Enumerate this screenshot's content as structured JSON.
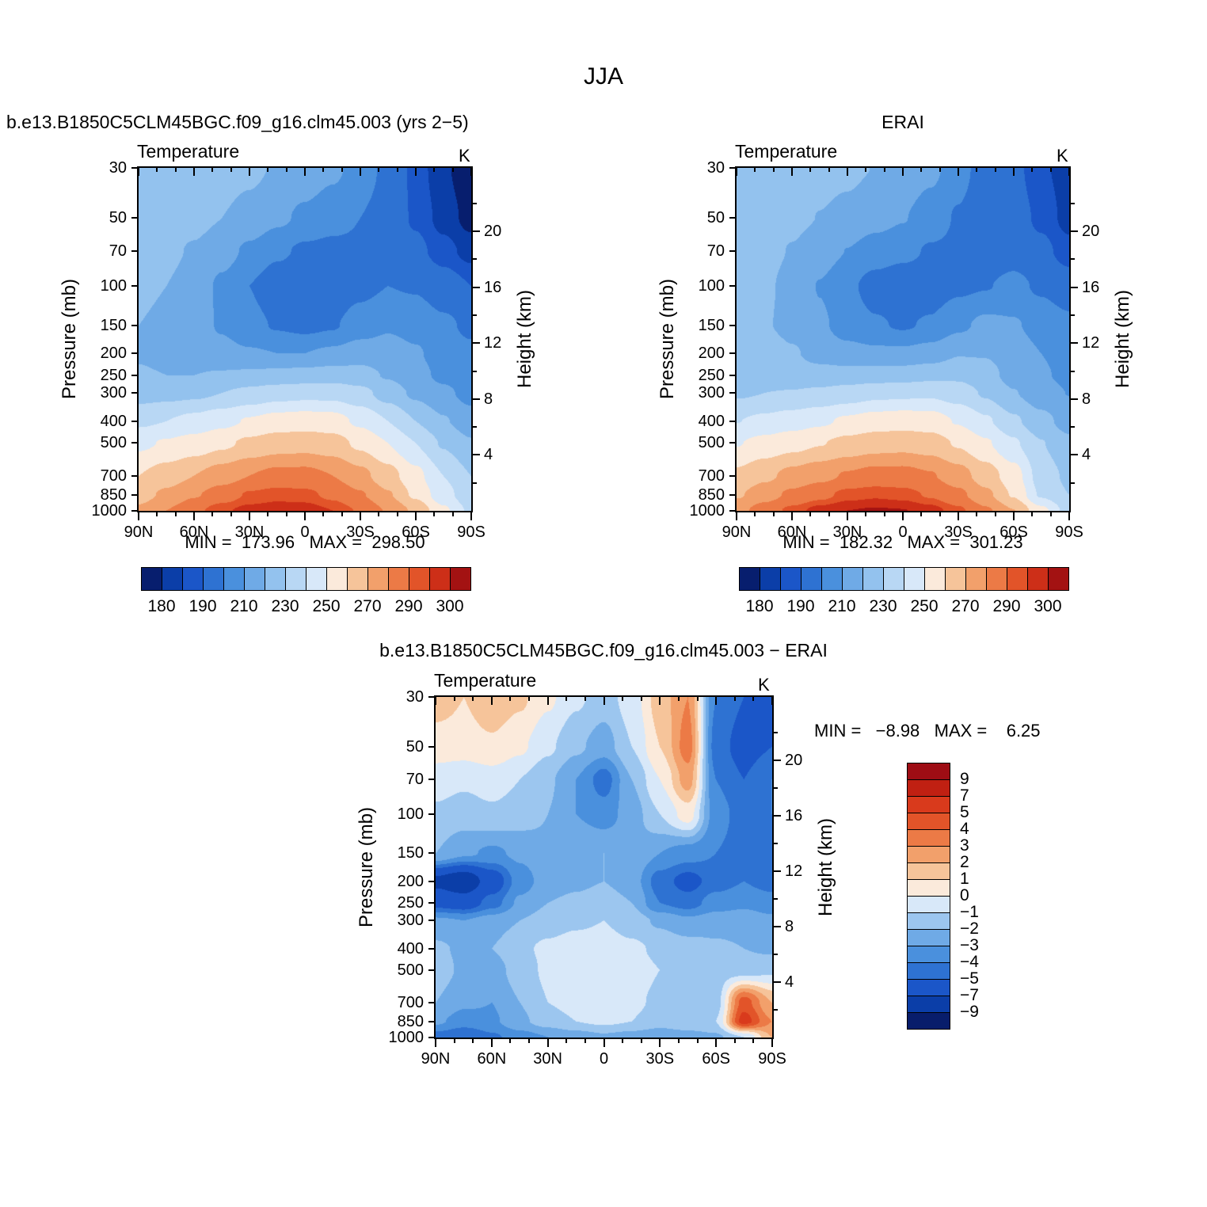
{
  "title": "JJA",
  "chart_data": {
    "type": "heatmap",
    "season": "JJA",
    "x": {
      "tick_labels": [
        "90N",
        "60N",
        "30N",
        "0",
        "30S",
        "60S",
        "90S"
      ],
      "lats": [
        90,
        75,
        60,
        45,
        30,
        15,
        0,
        -15,
        -30,
        -45,
        -60,
        -75,
        -90
      ]
    },
    "y": {
      "pressure_levels": [
        30,
        50,
        70,
        100,
        150,
        200,
        250,
        300,
        400,
        500,
        700,
        850,
        1000
      ],
      "height_ticks": [
        20,
        16,
        12,
        8,
        4
      ],
      "height_minor_ticks": [
        2,
        6,
        10,
        14,
        18,
        22
      ]
    },
    "temperature_scale": {
      "edges": [
        175,
        180,
        185,
        190,
        200,
        210,
        220,
        230,
        240,
        250,
        260,
        270,
        280,
        290,
        295,
        300,
        305
      ],
      "colors": [
        "#071e6e",
        "#0b3ea8",
        "#1b56c8",
        "#2e72d2",
        "#4a90dd",
        "#6faae6",
        "#93c2ee",
        "#b8d7f4",
        "#d8e8f9",
        "#fbeadb",
        "#f6c49a",
        "#f2a06b",
        "#ec7a46",
        "#e25429",
        "#cd2f18",
        "#a31212"
      ],
      "tick_labels": [
        "180",
        "",
        "190",
        "",
        "210",
        "",
        "230",
        "",
        "250",
        "",
        "270",
        "",
        "290",
        "",
        "300"
      ]
    },
    "difference_scale": {
      "edges": [
        -11,
        -9,
        -7,
        -5,
        -4,
        -3,
        -2,
        -1,
        0,
        1,
        2,
        3,
        4,
        5,
        7,
        9,
        11
      ],
      "colors": [
        "#081d6b",
        "#0b3ea8",
        "#1b56c8",
        "#2e72d2",
        "#4a90dd",
        "#6faae6",
        "#9cc6ef",
        "#d8e8f9",
        "#fbeadb",
        "#f6c49a",
        "#f2a06b",
        "#ec7a46",
        "#e25429",
        "#d93a1c",
        "#c02012",
        "#9e0d14"
      ],
      "tick_labels": [
        "−9",
        "−7",
        "−5",
        "−4",
        "−3",
        "−2",
        "−1",
        "0",
        "1",
        "2",
        "3",
        "4",
        "5",
        "7",
        "9"
      ]
    },
    "panels": [
      {
        "title": "b.e13.B1850C5CLM45BGC.f09_g16.clm45.003 (yrs 2−5)",
        "var_label": "Temperature",
        "units": "K",
        "ylabel_left": "Pressure (mb)",
        "ylabel_right": "Height (km)",
        "min_max": "MIN =  173.96   MAX =  298.50",
        "scale": "temperature_scale",
        "grid": [
          [
            228,
            227,
            226,
            224,
            222,
            219,
            216,
            212,
            206,
            197,
            188,
            181,
            176
          ],
          [
            226,
            225,
            223,
            220,
            217,
            212,
            208,
            204,
            200,
            195,
            189,
            183,
            178
          ],
          [
            224,
            222,
            219,
            214,
            208,
            202,
            198,
            197,
            198,
            196,
            192,
            187,
            183
          ],
          [
            222,
            220,
            216,
            208,
            200,
            193,
            190,
            192,
            197,
            200,
            199,
            194,
            190
          ],
          [
            220,
            218,
            214,
            209,
            203,
            199,
            197,
            199,
            205,
            209,
            207,
            202,
            198
          ],
          [
            219,
            217,
            215,
            213,
            211,
            210,
            210,
            212,
            215,
            214,
            211,
            206,
            202
          ],
          [
            221,
            220,
            220,
            221,
            222,
            223,
            224,
            225,
            224,
            219,
            213,
            208,
            204
          ],
          [
            226,
            227,
            228,
            230,
            233,
            236,
            237,
            237,
            233,
            226,
            218,
            212,
            207
          ],
          [
            238,
            240,
            243,
            247,
            251,
            254,
            255,
            254,
            248,
            240,
            230,
            221,
            214
          ],
          [
            248,
            251,
            254,
            258,
            262,
            265,
            266,
            264,
            258,
            250,
            240,
            229,
            221
          ],
          [
            260,
            265,
            270,
            275,
            280,
            283,
            283,
            280,
            273,
            264,
            253,
            240,
            230
          ],
          [
            266,
            272,
            279,
            285,
            291,
            293,
            292,
            288,
            281,
            271,
            258,
            244,
            233
          ],
          [
            272,
            280,
            288,
            294,
            297,
            298,
            298,
            295,
            289,
            279,
            268,
            252,
            238
          ]
        ]
      },
      {
        "title": "ERAI",
        "var_label": "Temperature",
        "units": "K",
        "ylabel_left": "Pressure (mb)",
        "ylabel_right": "Height (km)",
        "min_max": "MIN =  182.32   MAX =  301.23",
        "scale": "temperature_scale",
        "grid": [
          [
            226.5,
            226,
            224.2,
            222.8,
            221.8,
            219.8,
            217.5,
            212.5,
            204.5,
            194,
            192,
            186,
            182.5
          ],
          [
            225.5,
            224.5,
            222.2,
            219.8,
            217.8,
            213.8,
            210.5,
            205,
            199,
            191.5,
            193.5,
            188.5,
            183
          ],
          [
            224.5,
            222.8,
            219.5,
            215,
            209.8,
            205,
            202.5,
            199,
            198,
            193.5,
            196,
            192,
            187
          ],
          [
            223.2,
            221.5,
            217.2,
            209.5,
            202,
            196,
            193.5,
            194.5,
            198,
            199.5,
            202.5,
            198.5,
            194
          ],
          [
            222,
            220.8,
            217.2,
            211.8,
            205.2,
            201,
            199,
            201.2,
            208,
            212.5,
            211,
            206.5,
            202.5
          ],
          [
            226.5,
            225.5,
            221,
            216.5,
            213.5,
            212.2,
            212,
            214.5,
            219.5,
            219.5,
            215.5,
            210,
            206.5
          ],
          [
            226.5,
            226,
            224.5,
            223.8,
            224,
            224.8,
            225.5,
            227,
            228,
            223.5,
            216.5,
            211.2,
            207.5
          ],
          [
            228.8,
            230,
            230.5,
            232,
            234.5,
            237.2,
            238,
            238.5,
            235.2,
            228.8,
            220.5,
            214.5,
            209.8
          ],
          [
            239.8,
            242.2,
            245,
            248.2,
            251.8,
            254.5,
            255.5,
            254.8,
            249.2,
            241.5,
            231.8,
            223,
            216.2
          ],
          [
            249.5,
            253.2,
            256.5,
            259.5,
            262.8,
            265.5,
            266.4,
            264.6,
            259,
            251.2,
            241.5,
            230.5,
            222.2
          ],
          [
            262,
            267.8,
            273,
            277,
            281,
            283.6,
            283.5,
            280.8,
            274.2,
            265.2,
            254.5,
            235.5,
            228
          ],
          [
            268.8,
            275.5,
            282.2,
            287.2,
            292.5,
            294,
            292.8,
            289,
            282.5,
            272.2,
            259,
            238.5,
            230
          ],
          [
            276.5,
            285,
            292.2,
            297.5,
            300,
            300.6,
            300.2,
            297.5,
            291.8,
            281.5,
            270.2,
            253,
            236
          ]
        ]
      },
      {
        "title": "b.e13.B1850C5CLM45BGC.f09_g16.clm45.003 − ERAI",
        "var_label": "Temperature",
        "units": "K",
        "ylabel_left": "Pressure (mb)",
        "ylabel_right": "Height (km)",
        "min_max": "MIN =   −8.98   MAX =    6.25",
        "scale": "difference_scale",
        "grid": [
          [
            1.5,
            1,
            1.8,
            1.2,
            0.2,
            -0.8,
            -1.5,
            -0.5,
            1.5,
            3,
            -4,
            -5,
            -6.5
          ],
          [
            0.5,
            0.5,
            0.8,
            0.2,
            -0.8,
            -1.8,
            -2.5,
            -1,
            1,
            3.5,
            -4.5,
            -5.5,
            -5
          ],
          [
            -0.5,
            -0.8,
            -0.5,
            -1,
            -1.8,
            -3,
            -4.5,
            -2,
            0,
            2.5,
            -4,
            -5,
            -4
          ],
          [
            -1.2,
            -1.5,
            -1.2,
            -1.5,
            -2,
            -3,
            -3.5,
            -2.5,
            -1,
            0.5,
            -3.5,
            -4.5,
            -4
          ],
          [
            -2,
            -2.8,
            -3.2,
            -2.8,
            -2.2,
            -2,
            -2,
            -2.2,
            -3,
            -3.5,
            -4,
            -4.5,
            -4.5
          ],
          [
            -7.5,
            -8.5,
            -6,
            -3.5,
            -2.5,
            -2.2,
            -2,
            -2.5,
            -4.5,
            -5.5,
            -4.5,
            -4,
            -4.5
          ],
          [
            -5.5,
            -6,
            -4.5,
            -2.8,
            -2,
            -1.8,
            -1.5,
            -2,
            -4,
            -4.5,
            -3.5,
            -3.2,
            -3.5
          ],
          [
            -2.8,
            -3,
            -2.5,
            -2,
            -1.5,
            -1.2,
            -1,
            -1.5,
            -2.2,
            -2.8,
            -2.5,
            -2.5,
            -2.8
          ],
          [
            -1.8,
            -2.2,
            -2,
            -1.2,
            -0.8,
            -0.5,
            -0.5,
            -0.8,
            -1.2,
            -1.5,
            -1.8,
            -2,
            -2.2
          ],
          [
            -1.5,
            -2.2,
            -2.5,
            -1.5,
            -0.8,
            -0.5,
            -0.4,
            -0.6,
            -1,
            -1.2,
            -1.5,
            -1.5,
            -1.2
          ],
          [
            -2,
            -2.8,
            -3,
            -2,
            -1,
            -0.6,
            -0.5,
            -0.8,
            -1.2,
            -1.2,
            -1.5,
            4.5,
            2
          ],
          [
            -2.8,
            -3.5,
            -3.2,
            -2.2,
            -1.5,
            -1,
            -0.8,
            -1,
            -1.5,
            -1.2,
            -1,
            5.5,
            3
          ],
          [
            -4.5,
            -5,
            -4.2,
            -3.5,
            -3,
            -2.6,
            -2.2,
            -2.5,
            -2.8,
            -2.5,
            -2.2,
            -1,
            2
          ]
        ]
      }
    ]
  }
}
